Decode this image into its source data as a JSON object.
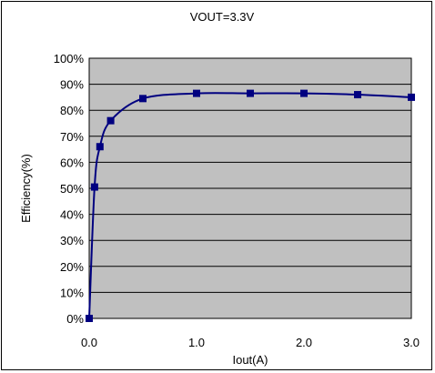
{
  "chart_data": {
    "type": "line",
    "title": "VOUT=3.3V",
    "xlabel": "Iout(A)",
    "ylabel": "Efficiency(%)",
    "xlim": [
      0,
      3
    ],
    "ylim": [
      0,
      100
    ],
    "x_ticks": [
      0,
      1,
      2,
      3
    ],
    "x_tick_labels": [
      "0.0",
      "1.0",
      "2.0",
      "3.0"
    ],
    "y_ticks": [
      0,
      10,
      20,
      30,
      40,
      50,
      60,
      70,
      80,
      90,
      100
    ],
    "y_tick_labels": [
      "0%",
      "10%",
      "20%",
      "30%",
      "40%",
      "50%",
      "60%",
      "70%",
      "80%",
      "90%",
      "100%"
    ],
    "grid": "horizontal",
    "legend": "none",
    "series": [
      {
        "x": [
          0,
          0.05,
          0.1,
          0.2,
          0.5,
          1.0,
          1.5,
          2.0,
          2.5,
          3.0
        ],
        "y": [
          0,
          50.5,
          66,
          76,
          84.5,
          86.5,
          86.5,
          86.5,
          86,
          85
        ]
      }
    ],
    "colors": {
      "line": "#000080",
      "marker": "#000080",
      "plot_background": "#c0c0c0",
      "gridline": "#000000"
    }
  }
}
